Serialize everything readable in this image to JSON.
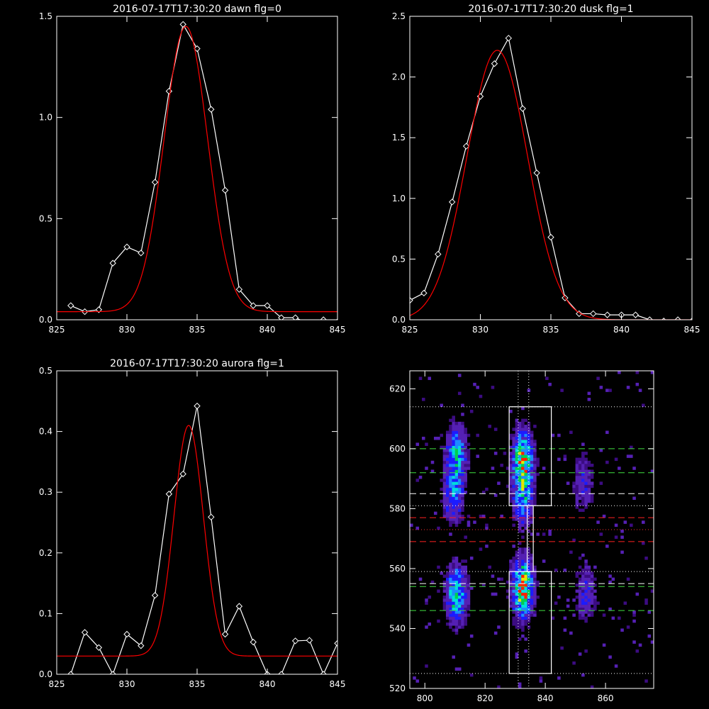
{
  "colors": {
    "background": "#000000",
    "data_line": "#ffffff",
    "fit_line": "#ff0000"
  },
  "chart_data": [
    {
      "type": "line",
      "title": "2016-07-17T17:30:20 dawn flg=0",
      "xlim": [
        825,
        845
      ],
      "ylim": [
        0,
        1.5
      ],
      "xticks": [
        825,
        830,
        835,
        840,
        845
      ],
      "yticks": [
        0.0,
        0.5,
        1.0,
        1.5
      ],
      "ytick_labels": [
        "0.0",
        "0.5",
        "1.0",
        "1.5"
      ],
      "series": [
        {
          "role": "data",
          "color": "#ffffff",
          "marker": "diamond",
          "x": [
            826,
            827,
            828,
            829,
            830,
            831,
            832,
            833,
            834,
            835,
            836,
            837,
            838,
            839,
            840,
            841,
            842,
            843,
            844,
            845
          ],
          "y": [
            0.07,
            0.04,
            0.05,
            0.28,
            0.36,
            0.33,
            0.68,
            1.13,
            1.46,
            1.34,
            1.04,
            0.64,
            0.15,
            0.07,
            0.07,
            0.01,
            0.01,
            -0.02,
            0.0,
            -0.01
          ]
        },
        {
          "role": "fit",
          "color": "#ff0000",
          "model": "gaussian",
          "amplitude": 1.41,
          "center": 834.2,
          "sigma": 1.55,
          "offset": 0.04
        }
      ]
    },
    {
      "type": "line",
      "title": "2016-07-17T17:30:20 dusk flg=1",
      "xlim": [
        825,
        845
      ],
      "ylim": [
        0,
        2.5
      ],
      "xticks": [
        825,
        830,
        835,
        840,
        845
      ],
      "yticks": [
        0.0,
        0.5,
        1.0,
        1.5,
        2.0,
        2.5
      ],
      "ytick_labels": [
        "0.0",
        "0.5",
        "1.0",
        "1.5",
        "2.0",
        "2.5"
      ],
      "series": [
        {
          "role": "data",
          "color": "#ffffff",
          "marker": "diamond",
          "x": [
            825,
            826,
            827,
            828,
            829,
            830,
            831,
            832,
            833,
            834,
            835,
            836,
            837,
            838,
            839,
            840,
            841,
            842,
            843,
            844,
            845
          ],
          "y": [
            0.16,
            0.22,
            0.54,
            0.97,
            1.43,
            1.84,
            2.11,
            2.32,
            1.74,
            1.21,
            0.68,
            0.18,
            0.05,
            0.05,
            0.04,
            0.04,
            0.04,
            0.0,
            -0.01,
            0.0,
            -0.01
          ]
        },
        {
          "role": "fit",
          "color": "#ff0000",
          "model": "gaussian",
          "amplitude": 2.22,
          "center": 831.2,
          "sigma": 2.15,
          "offset": 0.0
        }
      ]
    },
    {
      "type": "line",
      "title": "2016-07-17T17:30:20 aurora flg=1",
      "xlim": [
        825,
        845
      ],
      "ylim": [
        0,
        0.5
      ],
      "xticks": [
        825,
        830,
        835,
        840,
        845
      ],
      "yticks": [
        0.0,
        0.1,
        0.2,
        0.3,
        0.4,
        0.5
      ],
      "ytick_labels": [
        "0.0",
        "0.1",
        "0.2",
        "0.3",
        "0.4",
        "0.5"
      ],
      "series": [
        {
          "role": "data",
          "color": "#ffffff",
          "marker": "diamond",
          "x": [
            826,
            827,
            828,
            829,
            830,
            831,
            832,
            833,
            834,
            835,
            836,
            837,
            838,
            839,
            840,
            841,
            842,
            843,
            844,
            845
          ],
          "y": [
            0.0,
            0.069,
            0.044,
            0.0,
            0.066,
            0.047,
            0.13,
            0.297,
            0.33,
            0.442,
            0.259,
            0.066,
            0.112,
            0.053,
            0.0,
            0.0,
            0.055,
            0.056,
            0.0,
            0.051
          ]
        },
        {
          "role": "fit",
          "color": "#ff0000",
          "model": "gaussian",
          "amplitude": 0.38,
          "center": 834.4,
          "sigma": 1.05,
          "offset": 0.03
        }
      ]
    },
    {
      "type": "heatmap",
      "xlim": [
        795,
        876
      ],
      "ylim": [
        520,
        626
      ],
      "xticks": [
        800,
        820,
        840,
        860
      ],
      "yticks": [
        520,
        540,
        560,
        580,
        600,
        620
      ],
      "colormap": [
        "#3c0c82",
        "#5520b4",
        "#1c1cff",
        "#1c8cff",
        "#00dcdc",
        "#00d050",
        "#e6e600",
        "#ff2000"
      ],
      "sources": [
        {
          "x": 832,
          "y": 553,
          "intensity": 1.0
        },
        {
          "x": 832,
          "y": 596,
          "intensity": 0.85
        },
        {
          "x": 810,
          "y": 551,
          "intensity": 0.75
        },
        {
          "x": 810,
          "y": 598,
          "intensity": 0.55
        },
        {
          "x": 809,
          "y": 584,
          "intensity": 0.45
        },
        {
          "x": 832,
          "y": 583,
          "intensity": 0.5
        },
        {
          "x": 853,
          "y": 552,
          "intensity": 0.3
        },
        {
          "x": 852,
          "y": 588,
          "intensity": 0.28
        }
      ],
      "boxes": [
        {
          "x": [
            828,
            842
          ],
          "y": [
            581,
            614
          ]
        },
        {
          "x": [
            828,
            842
          ],
          "y": [
            525,
            559
          ]
        },
        {
          "x": [
            834,
            836
          ],
          "y": [
            559,
            581
          ]
        }
      ],
      "vlines_dotted": [
        831,
        834.5
      ],
      "hlines_dotted_white": [
        614,
        581,
        559,
        525
      ],
      "hlines_dotted_red": [
        573
      ],
      "hlines_dashed_green": [
        600,
        592,
        554,
        546
      ],
      "hlines_dashed_white": [
        585,
        555
      ],
      "hlines_dashed_red": [
        577,
        569
      ]
    }
  ]
}
